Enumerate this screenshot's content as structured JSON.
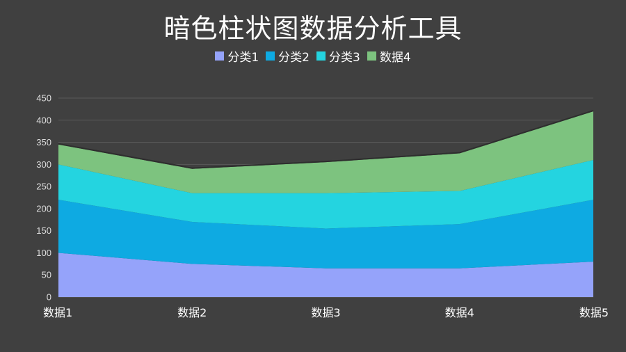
{
  "title": "暗色柱状图数据分析工具",
  "legend": [
    {
      "label": "分类1",
      "color": "#95A3FA"
    },
    {
      "label": "分类2",
      "color": "#0EAAE2"
    },
    {
      "label": "分类3",
      "color": "#24D4E0"
    },
    {
      "label": "数据4",
      "color": "#7DC37F"
    }
  ],
  "chart_data": {
    "type": "area",
    "stacked": true,
    "title": "暗色柱状图数据分析工具",
    "xlabel": "",
    "ylabel": "",
    "categories": [
      "数据1",
      "数据2",
      "数据3",
      "数据4",
      "数据5"
    ],
    "series": [
      {
        "name": "分类1",
        "color": "#95A3FA",
        "values": [
          100,
          75,
          65,
          65,
          80
        ]
      },
      {
        "name": "分类2",
        "color": "#0EAAE2",
        "values": [
          120,
          95,
          90,
          100,
          140
        ]
      },
      {
        "name": "分类3",
        "color": "#24D4E0",
        "values": [
          80,
          65,
          80,
          75,
          90
        ]
      },
      {
        "name": "数据4",
        "color": "#7DC37F",
        "values": [
          45,
          55,
          70,
          85,
          110
        ]
      }
    ],
    "ylim": [
      0,
      450
    ],
    "yticks": [
      0,
      50,
      100,
      150,
      200,
      250,
      300,
      350,
      400,
      450
    ],
    "grid": true,
    "legend_position": "top"
  }
}
